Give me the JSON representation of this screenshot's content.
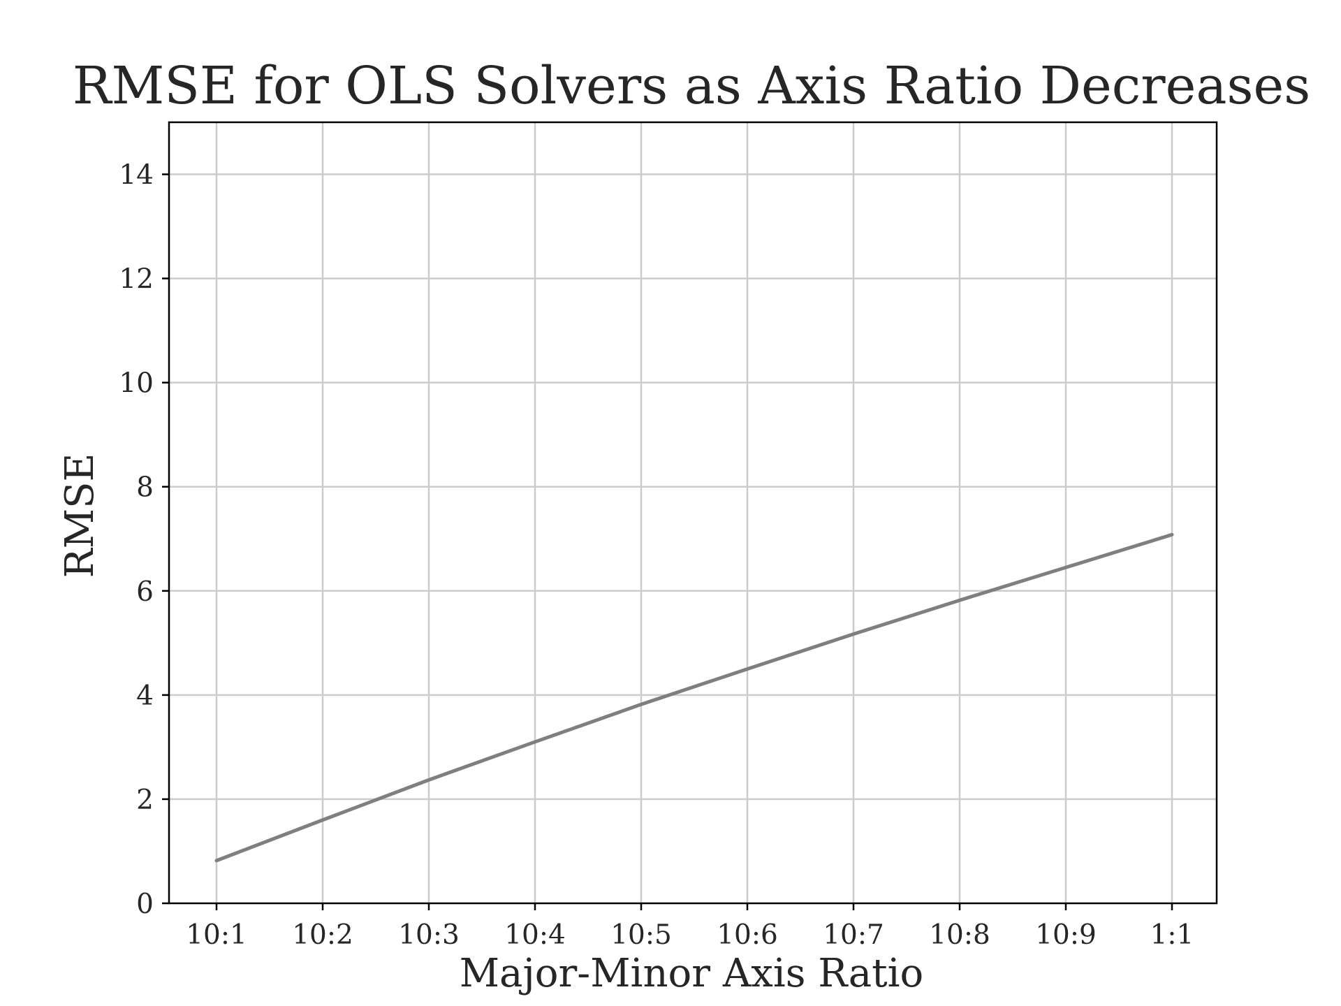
{
  "chart_data": {
    "type": "line",
    "title": "RMSE for OLS Solvers as Axis Ratio Decreases",
    "xlabel": "Major-Minor Axis Ratio",
    "ylabel": "RMSE",
    "categories": [
      "10:1",
      "10:2",
      "10:3",
      "10:4",
      "10:5",
      "10:6",
      "10:7",
      "10:8",
      "10:9",
      "1:1"
    ],
    "ylim": [
      0,
      15
    ],
    "yticks": [
      0,
      2,
      4,
      6,
      8,
      10,
      12,
      14
    ],
    "grid": true,
    "legend": "none",
    "series": [
      {
        "values": [
          0.82,
          1.6,
          2.37,
          3.1,
          3.82,
          4.5,
          5.17,
          5.82,
          6.45,
          7.08
        ],
        "color": "#7f7f7f"
      }
    ]
  }
}
